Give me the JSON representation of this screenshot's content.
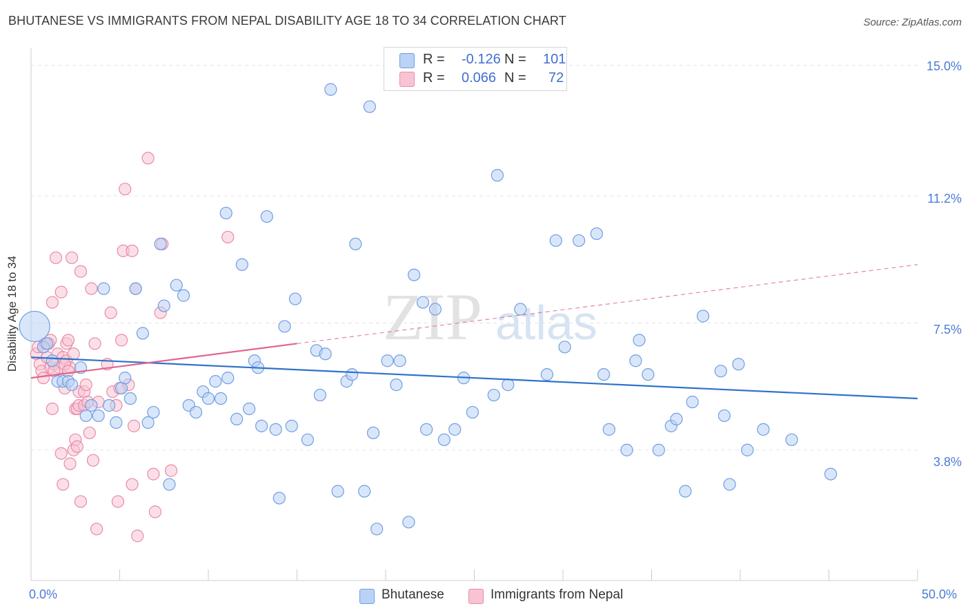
{
  "title": "BHUTANESE VS IMMIGRANTS FROM NEPAL DISABILITY AGE 18 TO 34 CORRELATION CHART",
  "source": "Source: ZipAtlas.com",
  "watermark": {
    "zip": "ZIP",
    "atlas": "atlas"
  },
  "legend": {
    "r_label": "R =",
    "n_label": "N =",
    "rows": [
      {
        "r": "-0.126",
        "n": "101"
      },
      {
        "r": "0.066",
        "n": "72"
      }
    ]
  },
  "colors": {
    "blue_fill": "#b9d2f5",
    "blue_stroke": "#6f9ee0",
    "blue_line": "#2f72c9",
    "pink_fill": "#f8c4d3",
    "pink_stroke": "#e98aa8",
    "pink_line": "#e0648f",
    "grid": "#e3e3e3",
    "tick_text": "#4a7bd6"
  },
  "chart_data": {
    "type": "scatter",
    "title": "BHUTANESE VS IMMIGRANTS FROM NEPAL DISABILITY AGE 18 TO 34 CORRELATION CHART",
    "xlabel": "",
    "ylabel": "Disability Age 18 to 34",
    "xlim": [
      0,
      50
    ],
    "ylim": [
      0,
      15.5
    ],
    "x_tick_labels": [
      "0.0%",
      "50.0%"
    ],
    "y_ticks": [
      3.8,
      7.5,
      11.2,
      15.0
    ],
    "y_tick_labels": [
      "3.8%",
      "7.5%",
      "11.2%",
      "15.0%"
    ],
    "grid": true,
    "legend_position": "top-center and bottom",
    "series": [
      {
        "name": "Bhutanese",
        "color": "#b9d2f5",
        "trend": {
          "x": [
            0,
            50
          ],
          "y": [
            6.5,
            5.3
          ]
        },
        "points": [
          [
            0.2,
            7.4
          ],
          [
            0.7,
            6.8
          ],
          [
            0.9,
            6.9
          ],
          [
            1.2,
            6.4
          ],
          [
            1.5,
            5.8
          ],
          [
            1.8,
            5.8
          ],
          [
            2.1,
            5.8
          ],
          [
            2.3,
            5.7
          ],
          [
            2.8,
            6.2
          ],
          [
            3.1,
            4.8
          ],
          [
            3.4,
            5.1
          ],
          [
            3.8,
            4.8
          ],
          [
            4.1,
            8.5
          ],
          [
            4.4,
            5.1
          ],
          [
            4.8,
            4.6
          ],
          [
            5.1,
            5.6
          ],
          [
            5.3,
            5.9
          ],
          [
            5.6,
            5.3
          ],
          [
            5.9,
            8.5
          ],
          [
            6.3,
            7.2
          ],
          [
            6.6,
            4.6
          ],
          [
            6.9,
            4.9
          ],
          [
            7.3,
            9.8
          ],
          [
            7.5,
            8.0
          ],
          [
            7.8,
            2.8
          ],
          [
            8.2,
            8.6
          ],
          [
            8.6,
            8.3
          ],
          [
            8.9,
            5.1
          ],
          [
            9.3,
            4.9
          ],
          [
            9.7,
            5.5
          ],
          [
            10.0,
            5.3
          ],
          [
            10.4,
            5.8
          ],
          [
            10.7,
            5.3
          ],
          [
            11.1,
            5.9
          ],
          [
            11.0,
            10.7
          ],
          [
            11.6,
            4.7
          ],
          [
            11.9,
            9.2
          ],
          [
            12.3,
            5.0
          ],
          [
            12.6,
            6.4
          ],
          [
            12.8,
            6.2
          ],
          [
            13.0,
            4.5
          ],
          [
            13.3,
            10.6
          ],
          [
            13.8,
            4.4
          ],
          [
            14.0,
            2.4
          ],
          [
            14.3,
            7.4
          ],
          [
            14.7,
            4.5
          ],
          [
            14.9,
            8.2
          ],
          [
            15.6,
            4.1
          ],
          [
            16.1,
            6.7
          ],
          [
            16.3,
            5.4
          ],
          [
            16.6,
            6.6
          ],
          [
            16.9,
            14.3
          ],
          [
            17.3,
            2.6
          ],
          [
            17.8,
            5.8
          ],
          [
            18.1,
            6.0
          ],
          [
            18.3,
            9.8
          ],
          [
            18.8,
            2.6
          ],
          [
            19.1,
            13.8
          ],
          [
            19.3,
            4.3
          ],
          [
            19.5,
            1.5
          ],
          [
            20.1,
            6.4
          ],
          [
            20.6,
            5.7
          ],
          [
            20.8,
            6.4
          ],
          [
            21.3,
            1.7
          ],
          [
            21.6,
            8.9
          ],
          [
            22.1,
            8.1
          ],
          [
            22.3,
            4.4
          ],
          [
            22.8,
            7.9
          ],
          [
            23.3,
            4.1
          ],
          [
            23.9,
            4.4
          ],
          [
            24.4,
            5.9
          ],
          [
            24.9,
            4.9
          ],
          [
            26.1,
            5.4
          ],
          [
            26.3,
            11.8
          ],
          [
            26.9,
            5.7
          ],
          [
            27.6,
            7.9
          ],
          [
            29.1,
            6.0
          ],
          [
            29.6,
            9.9
          ],
          [
            30.1,
            6.8
          ],
          [
            30.9,
            9.9
          ],
          [
            31.9,
            10.1
          ],
          [
            32.3,
            6.0
          ],
          [
            32.6,
            4.4
          ],
          [
            33.6,
            3.8
          ],
          [
            34.1,
            6.4
          ],
          [
            34.3,
            7.0
          ],
          [
            34.8,
            6.0
          ],
          [
            35.4,
            3.8
          ],
          [
            36.1,
            4.5
          ],
          [
            36.4,
            4.7
          ],
          [
            36.9,
            2.6
          ],
          [
            37.3,
            5.2
          ],
          [
            37.9,
            7.7
          ],
          [
            38.9,
            6.1
          ],
          [
            39.1,
            4.8
          ],
          [
            39.4,
            2.8
          ],
          [
            39.9,
            6.3
          ],
          [
            40.4,
            3.8
          ],
          [
            41.3,
            4.4
          ],
          [
            42.9,
            4.1
          ],
          [
            45.1,
            3.1
          ]
        ]
      },
      {
        "name": "Immigrants from Nepal",
        "color": "#f8c4d3",
        "trend": {
          "x": [
            0,
            15
          ],
          "y": [
            5.9,
            6.9
          ]
        },
        "trend_extended": {
          "x": [
            15,
            50
          ],
          "y": [
            6.9,
            9.2
          ]
        },
        "points": [
          [
            0.3,
            6.6
          ],
          [
            0.4,
            6.8
          ],
          [
            0.5,
            6.3
          ],
          [
            0.6,
            6.1
          ],
          [
            0.7,
            5.9
          ],
          [
            0.8,
            6.9
          ],
          [
            0.9,
            6.5
          ],
          [
            1.0,
            6.9
          ],
          [
            1.1,
            6.2
          ],
          [
            1.1,
            7.0
          ],
          [
            1.2,
            5.0
          ],
          [
            1.2,
            8.1
          ],
          [
            1.3,
            6.3
          ],
          [
            1.4,
            9.4
          ],
          [
            1.5,
            6.6
          ],
          [
            1.6,
            6.2
          ],
          [
            1.7,
            3.7
          ],
          [
            1.7,
            8.4
          ],
          [
            1.8,
            6.5
          ],
          [
            1.8,
            2.8
          ],
          [
            1.9,
            5.6
          ],
          [
            2.0,
            6.4
          ],
          [
            2.0,
            6.9
          ],
          [
            2.1,
            7.0
          ],
          [
            2.2,
            6.2
          ],
          [
            2.2,
            3.4
          ],
          [
            2.3,
            9.4
          ],
          [
            2.4,
            6.6
          ],
          [
            2.4,
            3.8
          ],
          [
            2.5,
            4.1
          ],
          [
            2.5,
            5.0
          ],
          [
            2.6,
            3.9
          ],
          [
            2.6,
            5.0
          ],
          [
            2.7,
            5.5
          ],
          [
            2.7,
            5.1
          ],
          [
            2.8,
            2.3
          ],
          [
            2.8,
            9.0
          ],
          [
            3.0,
            5.5
          ],
          [
            3.0,
            5.1
          ],
          [
            3.1,
            5.7
          ],
          [
            3.2,
            5.2
          ],
          [
            3.3,
            4.3
          ],
          [
            3.4,
            8.5
          ],
          [
            3.5,
            3.5
          ],
          [
            3.6,
            6.9
          ],
          [
            3.7,
            1.5
          ],
          [
            4.3,
            6.3
          ],
          [
            4.5,
            7.8
          ],
          [
            4.6,
            5.5
          ],
          [
            4.8,
            5.1
          ],
          [
            4.9,
            2.3
          ],
          [
            5.0,
            5.6
          ],
          [
            5.1,
            7.0
          ],
          [
            5.2,
            9.6
          ],
          [
            5.3,
            11.4
          ],
          [
            5.5,
            5.7
          ],
          [
            5.7,
            9.6
          ],
          [
            5.7,
            2.8
          ],
          [
            5.8,
            4.5
          ],
          [
            5.9,
            8.5
          ],
          [
            6.0,
            1.3
          ],
          [
            6.6,
            12.3
          ],
          [
            6.9,
            3.1
          ],
          [
            7.0,
            2.0
          ],
          [
            7.3,
            7.8
          ],
          [
            7.4,
            9.8
          ],
          [
            7.9,
            3.2
          ],
          [
            11.1,
            10.0
          ],
          [
            1.3,
            6.1
          ],
          [
            1.9,
            6.3
          ],
          [
            2.1,
            6.1
          ],
          [
            3.8,
            5.2
          ]
        ]
      }
    ]
  }
}
